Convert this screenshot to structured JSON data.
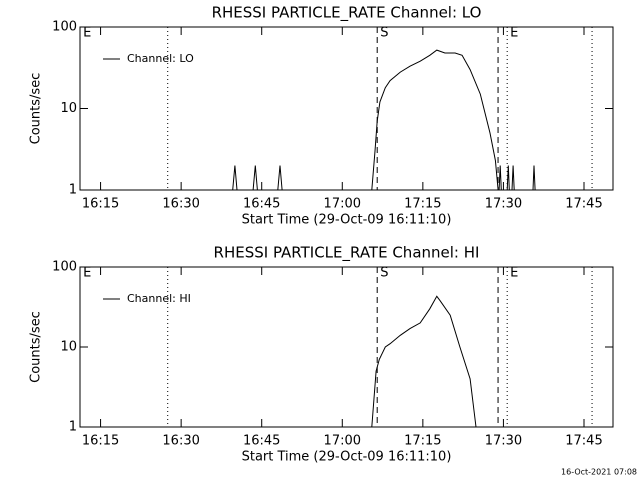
{
  "chart_data": [
    {
      "type": "line",
      "title": "RHESSI PARTICLE_RATE Channel: LO",
      "xlabel": "Start Time (29-Oct-09 16:11:10)",
      "ylabel": "Counts/sec",
      "log_y": true,
      "legend": "upper left",
      "xlim": [
        11.17,
        110.4
      ],
      "ylim": [
        1,
        100
      ],
      "xticks": [
        {
          "value": 15,
          "label": "16:15"
        },
        {
          "value": 30,
          "label": "16:30"
        },
        {
          "value": 45,
          "label": "16:45"
        },
        {
          "value": 60,
          "label": "17:00"
        },
        {
          "value": 75,
          "label": "17:15"
        },
        {
          "value": 90,
          "label": "17:30"
        },
        {
          "value": 105,
          "label": "17:45"
        }
      ],
      "yticks": [
        1,
        10,
        100
      ],
      "x": [
        11.2,
        39.6,
        40.0,
        40.4,
        43.4,
        43.8,
        44.2,
        48.0,
        48.4,
        48.8,
        65.5,
        66.1,
        66.5,
        67.0,
        68.0,
        68.9,
        70.8,
        72.6,
        74.5,
        76.3,
        77.6,
        79.1,
        81.0,
        82.3,
        83.8,
        85.7,
        87.5,
        88.5,
        89.0,
        89.2,
        89.4,
        89.6,
        90.7,
        90.9,
        91.1,
        91.6,
        91.8,
        92.0,
        95.5,
        95.7,
        95.9,
        110.4
      ],
      "series": [
        {
          "name": "Channel: LO",
          "color": "#000000",
          "values": [
            1,
            1,
            2,
            1,
            1,
            2,
            1,
            1,
            2,
            1,
            1,
            3,
            7,
            12,
            18,
            22,
            28,
            33,
            38,
            45,
            52,
            48,
            48,
            45,
            30,
            15,
            5,
            2.3,
            1,
            1,
            2,
            1,
            1,
            2,
            1,
            1,
            2,
            1,
            1,
            2,
            1,
            1
          ]
        }
      ],
      "vlines": [
        {
          "x": 11.2,
          "style": "none",
          "label": "E"
        },
        {
          "x": 27.5,
          "style": "dotted"
        },
        {
          "x": 66.5,
          "style": "dashed",
          "label": "S"
        },
        {
          "x": 89.0,
          "style": "dashed"
        },
        {
          "x": 90.7,
          "style": "dotted",
          "label": "E"
        },
        {
          "x": 106.5,
          "style": "dotted"
        }
      ]
    },
    {
      "type": "line",
      "title": "RHESSI PARTICLE_RATE Channel: HI",
      "xlabel": "Start Time (29-Oct-09 16:11:10)",
      "ylabel": "Counts/sec",
      "log_y": true,
      "legend": "upper left",
      "xlim": [
        11.17,
        110.4
      ],
      "ylim": [
        1,
        100
      ],
      "xticks": [
        {
          "value": 15,
          "label": "16:15"
        },
        {
          "value": 30,
          "label": "16:30"
        },
        {
          "value": 45,
          "label": "16:45"
        },
        {
          "value": 60,
          "label": "17:00"
        },
        {
          "value": 75,
          "label": "17:15"
        },
        {
          "value": 90,
          "label": "17:30"
        },
        {
          "value": 105,
          "label": "17:45"
        }
      ],
      "yticks": [
        1,
        10,
        100
      ],
      "x": [
        65.5,
        66.3,
        66.9,
        68.0,
        68.9,
        70.8,
        72.6,
        74.5,
        76.3,
        77.6,
        78.2,
        80.1,
        81.9,
        83.8,
        84.9
      ],
      "series": [
        {
          "name": "Channel: HI",
          "color": "#000000",
          "values": [
            1,
            5,
            7,
            10,
            11,
            14,
            17,
            20,
            30,
            43,
            38,
            25,
            10,
            4,
            1
          ]
        }
      ],
      "vlines": [
        {
          "x": 11.2,
          "style": "none",
          "label": "E"
        },
        {
          "x": 27.5,
          "style": "dotted"
        },
        {
          "x": 66.5,
          "style": "dashed",
          "label": "S"
        },
        {
          "x": 89.0,
          "style": "dashed"
        },
        {
          "x": 90.7,
          "style": "dotted",
          "label": "E"
        },
        {
          "x": 106.5,
          "style": "dotted"
        }
      ]
    }
  ],
  "footer": "16-Oct-2021 07:08"
}
